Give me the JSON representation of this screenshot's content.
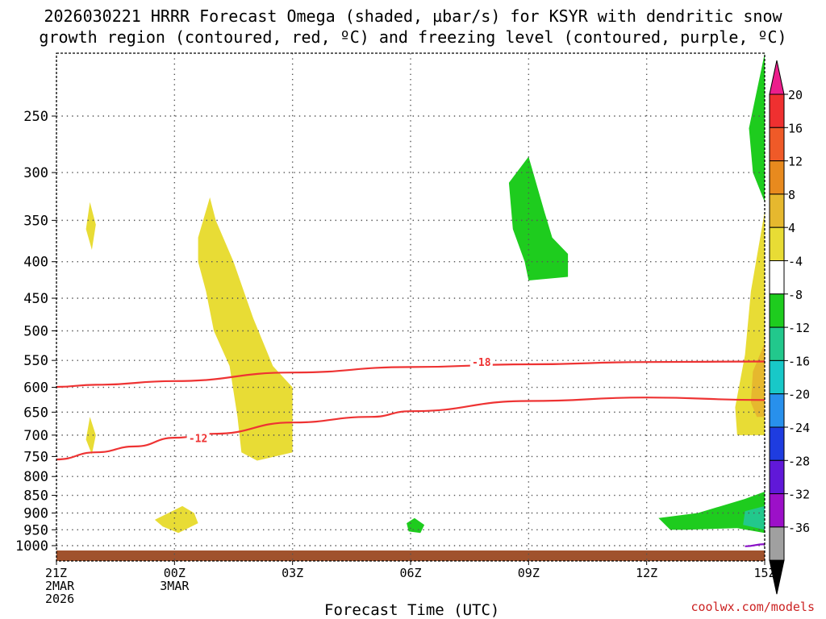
{
  "title": {
    "line1": "2026030221 HRRR Forecast Omega (shaded, µbar/s) for KSYR with dendritic snow",
    "line2": "growth region (contoured, red, ºC) and freezing level (contoured, purple, ºC)"
  },
  "credit": "coolwx.com/models",
  "chart_data": {
    "type": "heatmap",
    "xlabel": "Forecast Time (UTC)",
    "ylabel": "",
    "x_ticks": [
      {
        "hour": 0,
        "lines": [
          "21Z",
          "2MAR",
          "2026"
        ]
      },
      {
        "hour": 3,
        "lines": [
          "00Z",
          "3MAR"
        ]
      },
      {
        "hour": 6,
        "lines": [
          "03Z"
        ]
      },
      {
        "hour": 9,
        "lines": [
          "06Z"
        ]
      },
      {
        "hour": 12,
        "lines": [
          "09Z"
        ]
      },
      {
        "hour": 15,
        "lines": [
          "12Z"
        ]
      },
      {
        "hour": 18,
        "lines": [
          "15Z"
        ]
      }
    ],
    "xlim_hours": [
      0,
      18
    ],
    "y_levels_hPa": [
      250,
      300,
      350,
      400,
      450,
      500,
      550,
      600,
      650,
      700,
      750,
      800,
      850,
      900,
      950,
      1000
    ],
    "y_scale": "log-pressure, inverted",
    "grid": "dotted",
    "colorbar": {
      "labels": [
        "20",
        "16",
        "12",
        "8",
        "4",
        "-4",
        "-8",
        "-12",
        "-16",
        "-20",
        "-24",
        "-28",
        "-32",
        "-36"
      ],
      "colors": [
        "#ef3030",
        "#ef5a28",
        "#e88a1e",
        "#e6b82e",
        "#e8dc35",
        "#ffffff",
        "#1ecc1e",
        "#22c88c",
        "#18c8c8",
        "#2890ec",
        "#1e3ce0",
        "#6018d8",
        "#9c10c8",
        "#a0a0a0"
      ],
      "top_arrow_color": "#ec1e8c",
      "bottom_arrow_color": "#000000"
    },
    "contours": [
      {
        "label": "-18",
        "color": "#ee3333",
        "points": [
          [
            0,
            599
          ],
          [
            1,
            595
          ],
          [
            3,
            588
          ],
          [
            6,
            572
          ],
          [
            9,
            562
          ],
          [
            12,
            557
          ],
          [
            15,
            553
          ],
          [
            18,
            552
          ]
        ]
      },
      {
        "label": "-12",
        "color": "#ee3333",
        "points": [
          [
            0,
            757
          ],
          [
            1,
            740
          ],
          [
            2,
            726
          ],
          [
            3,
            706
          ],
          [
            4,
            697
          ],
          [
            6,
            672
          ],
          [
            8,
            660
          ],
          [
            9,
            648
          ],
          [
            12,
            627
          ],
          [
            15,
            620
          ],
          [
            18,
            625
          ]
        ]
      },
      {
        "label": "",
        "color": "#8a10c8",
        "points": [
          [
            17.5,
            1002
          ],
          [
            18,
            995
          ]
        ]
      }
    ],
    "shaded_regions": [
      {
        "class": "4 to 8",
        "color": "#e8dc35",
        "points": [
          [
            0.85,
            330
          ],
          [
            1.0,
            355
          ],
          [
            0.9,
            385
          ],
          [
            0.75,
            360
          ]
        ]
      },
      {
        "class": "4 to 8",
        "color": "#e8dc35",
        "points": [
          [
            3.9,
            325
          ],
          [
            4.05,
            350
          ],
          [
            4.5,
            400
          ],
          [
            5.0,
            480
          ],
          [
            5.5,
            560
          ],
          [
            6.0,
            600
          ],
          [
            6.0,
            740
          ],
          [
            5.1,
            760
          ],
          [
            4.7,
            740
          ],
          [
            4.6,
            660
          ],
          [
            4.4,
            560
          ],
          [
            4.0,
            500
          ],
          [
            3.8,
            440
          ],
          [
            3.6,
            400
          ],
          [
            3.6,
            370
          ]
        ]
      },
      {
        "class": "4 to 8",
        "color": "#e8dc35",
        "points": [
          [
            0.85,
            660
          ],
          [
            1.0,
            700
          ],
          [
            0.9,
            745
          ],
          [
            0.75,
            710
          ]
        ]
      },
      {
        "class": "4 to 8",
        "color": "#e8dc35",
        "points": [
          [
            2.5,
            920
          ],
          [
            3.2,
            880
          ],
          [
            3.5,
            900
          ],
          [
            3.6,
            930
          ],
          [
            3.1,
            960
          ],
          [
            2.7,
            940
          ]
        ]
      },
      {
        "class": "4 to 8",
        "color": "#e8dc35",
        "points": [
          [
            18,
            340
          ],
          [
            17.65,
            440
          ],
          [
            17.5,
            540
          ],
          [
            17.25,
            640
          ],
          [
            17.3,
            700
          ],
          [
            18,
            700
          ]
        ]
      },
      {
        "class": "8 to 12",
        "color": "#e6b82e",
        "points": [
          [
            18,
            520
          ],
          [
            17.7,
            570
          ],
          [
            17.65,
            630
          ],
          [
            17.8,
            660
          ],
          [
            18,
            660
          ]
        ]
      },
      {
        "class": "-8 to -4",
        "color": "#1ecc1e",
        "points": [
          [
            12.0,
            285
          ],
          [
            12.4,
            340
          ],
          [
            12.6,
            370
          ],
          [
            13.0,
            390
          ],
          [
            13.0,
            420
          ],
          [
            12.0,
            425
          ],
          [
            11.9,
            400
          ],
          [
            11.6,
            360
          ],
          [
            11.5,
            310
          ]
        ]
      },
      {
        "class": "-8 to -4",
        "color": "#1ecc1e",
        "points": [
          [
            18,
            200
          ],
          [
            17.6,
            260
          ],
          [
            17.7,
            300
          ],
          [
            18,
            330
          ]
        ]
      },
      {
        "class": "-8 to -4",
        "color": "#1ecc1e",
        "points": [
          [
            9.1,
            915
          ],
          [
            9.35,
            935
          ],
          [
            9.25,
            960
          ],
          [
            8.95,
            955
          ],
          [
            8.9,
            930
          ]
        ]
      },
      {
        "class": "-8 to -4",
        "color": "#1ecc1e",
        "points": [
          [
            15.3,
            915
          ],
          [
            16.3,
            900
          ],
          [
            17.5,
            860
          ],
          [
            18,
            840
          ],
          [
            18,
            960
          ],
          [
            17.3,
            945
          ],
          [
            16.0,
            950
          ],
          [
            15.6,
            950
          ]
        ]
      },
      {
        "class": "-12 to -8",
        "color": "#22c88c",
        "points": [
          [
            18,
            880
          ],
          [
            17.5,
            895
          ],
          [
            17.45,
            935
          ],
          [
            18,
            950
          ]
        ]
      }
    ],
    "ground": {
      "color": "#a0522d",
      "from_hPa": 1010,
      "to_hPa": 1040
    }
  }
}
